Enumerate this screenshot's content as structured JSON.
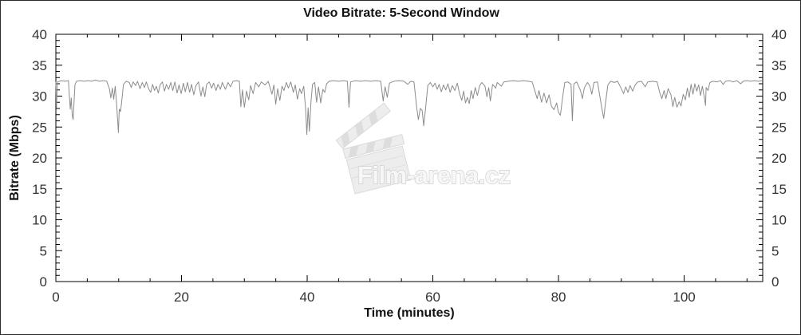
{
  "colors": {
    "background": "#ffffff",
    "axis": "#000000",
    "tick_label": "#333333",
    "line": "#8c8c8c",
    "watermark_fill": "#f7f7f7",
    "watermark_stroke": "#cccccc",
    "watermark_board": "#ececec",
    "watermark_board_stroke": "#d6d6d6"
  },
  "watermark": {
    "text": "Film-arena.cz",
    "icon": "clapperboard-icon"
  },
  "chart_data": {
    "type": "line",
    "title": "Video Bitrate: 5-Second Window",
    "xlabel": "Time (minutes)",
    "ylabel": "Bitrate (Mbps)",
    "xlim": [
      0,
      112.5
    ],
    "ylim": [
      0,
      40
    ],
    "x_major_ticks": [
      0,
      20,
      40,
      60,
      80,
      100
    ],
    "x_minor_step": 5,
    "y_major_ticks": [
      0,
      5,
      10,
      15,
      20,
      25,
      30,
      35,
      40
    ],
    "y_minor_step": 1,
    "grid": false,
    "legend": "none",
    "mirrored_axes": true,
    "line_color": "#8c8c8c",
    "series": [
      {
        "name": "video-bitrate-5s-window",
        "points": [
          [
            0,
            32.3
          ],
          [
            0.1,
            28.2
          ],
          [
            0.25,
            32.3
          ],
          [
            0.9,
            32.5
          ],
          [
            1.5,
            32.4
          ],
          [
            2.0,
            32.5
          ],
          [
            2.15,
            30.1
          ],
          [
            2.3,
            27.9
          ],
          [
            2.45,
            29.7
          ],
          [
            2.6,
            26.9
          ],
          [
            2.75,
            26.2
          ],
          [
            2.9,
            29.0
          ],
          [
            3.05,
            31.9
          ],
          [
            3.3,
            32.4
          ],
          [
            3.9,
            32.5
          ],
          [
            4.5,
            32.4
          ],
          [
            5.1,
            32.5
          ],
          [
            5.7,
            32.4
          ],
          [
            6.3,
            32.6
          ],
          [
            6.9,
            32.4
          ],
          [
            7.5,
            32.5
          ],
          [
            8.1,
            32.4
          ],
          [
            8.55,
            31.1
          ],
          [
            8.75,
            29.7
          ],
          [
            9.0,
            31.3
          ],
          [
            9.2,
            29.5
          ],
          [
            9.45,
            31.6
          ],
          [
            9.7,
            28.3
          ],
          [
            9.95,
            24.1
          ],
          [
            10.1,
            27.9
          ],
          [
            10.3,
            27.5
          ],
          [
            10.5,
            29.3
          ],
          [
            10.75,
            31.9
          ],
          [
            11.2,
            32.4
          ],
          [
            11.7,
            32.2
          ],
          [
            12.0,
            31.4
          ],
          [
            12.3,
            32.3
          ],
          [
            12.7,
            31.7
          ],
          [
            13.0,
            32.4
          ],
          [
            13.4,
            31.2
          ],
          [
            13.75,
            32.2
          ],
          [
            14.1,
            31.4
          ],
          [
            14.4,
            32.3
          ],
          [
            14.8,
            31.1
          ],
          [
            15.1,
            30.6
          ],
          [
            15.4,
            31.9
          ],
          [
            15.7,
            30.9
          ],
          [
            16.0,
            31.6
          ],
          [
            16.3,
            30.5
          ],
          [
            16.6,
            31.8
          ],
          [
            16.95,
            32.3
          ],
          [
            17.3,
            30.8
          ],
          [
            17.6,
            31.9
          ],
          [
            17.95,
            31.1
          ],
          [
            18.3,
            32.2
          ],
          [
            18.6,
            30.9
          ],
          [
            18.95,
            32.3
          ],
          [
            19.3,
            30.5
          ],
          [
            19.6,
            31.8
          ],
          [
            19.95,
            30.4
          ],
          [
            20.3,
            32.1
          ],
          [
            20.6,
            30.7
          ],
          [
            20.95,
            32.2
          ],
          [
            21.3,
            30.6
          ],
          [
            21.6,
            31.9
          ],
          [
            21.95,
            30.2
          ],
          [
            22.3,
            31.7
          ],
          [
            22.7,
            32.3
          ],
          [
            23.1,
            30.0
          ],
          [
            23.4,
            31.5
          ],
          [
            23.7,
            29.9
          ],
          [
            24.0,
            31.9
          ],
          [
            24.4,
            32.3
          ],
          [
            24.8,
            31.3
          ],
          [
            25.1,
            32.1
          ],
          [
            25.5,
            30.9
          ],
          [
            25.8,
            31.9
          ],
          [
            26.2,
            31.1
          ],
          [
            26.5,
            32.2
          ],
          [
            27.0,
            31.1
          ],
          [
            27.4,
            32.2
          ],
          [
            27.8,
            31.5
          ],
          [
            28.2,
            32.4
          ],
          [
            28.8,
            32.5
          ],
          [
            29.2,
            32.4
          ],
          [
            29.45,
            28.3
          ],
          [
            29.7,
            31.0
          ],
          [
            30.0,
            28.2
          ],
          [
            30.35,
            30.8
          ],
          [
            30.7,
            29.4
          ],
          [
            31.0,
            31.7
          ],
          [
            31.4,
            30.4
          ],
          [
            31.8,
            32.2
          ],
          [
            32.3,
            31.5
          ],
          [
            32.7,
            32.3
          ],
          [
            33.3,
            31.8
          ],
          [
            33.8,
            32.4
          ],
          [
            34.4,
            30.3
          ],
          [
            34.7,
            31.8
          ],
          [
            35.0,
            28.7
          ],
          [
            35.3,
            31.2
          ],
          [
            35.65,
            29.3
          ],
          [
            36.0,
            31.6
          ],
          [
            36.3,
            30.9
          ],
          [
            36.7,
            32.2
          ],
          [
            37.0,
            31.3
          ],
          [
            37.4,
            32.3
          ],
          [
            37.8,
            30.6
          ],
          [
            38.1,
            31.8
          ],
          [
            38.45,
            29.5
          ],
          [
            38.8,
            31.2
          ],
          [
            39.1,
            30.4
          ],
          [
            39.45,
            31.6
          ],
          [
            39.75,
            27.9
          ],
          [
            39.95,
            23.8
          ],
          [
            40.15,
            28.1
          ],
          [
            40.35,
            24.3
          ],
          [
            40.6,
            28.9
          ],
          [
            40.85,
            31.9
          ],
          [
            41.2,
            32.2
          ],
          [
            41.5,
            29.0
          ],
          [
            41.8,
            31.5
          ],
          [
            42.15,
            28.9
          ],
          [
            42.5,
            31.1
          ],
          [
            42.8,
            30.6
          ],
          [
            43.1,
            32.0
          ],
          [
            43.5,
            32.4
          ],
          [
            44.2,
            32.5
          ],
          [
            45.0,
            32.4
          ],
          [
            45.8,
            32.5
          ],
          [
            46.4,
            32.4
          ],
          [
            46.65,
            28.2
          ],
          [
            46.9,
            32.3
          ],
          [
            47.7,
            32.5
          ],
          [
            48.5,
            32.4
          ],
          [
            49.3,
            32.5
          ],
          [
            50.1,
            32.4
          ],
          [
            50.9,
            32.5
          ],
          [
            51.7,
            32.4
          ],
          [
            52.1,
            29.2
          ],
          [
            52.4,
            31.5
          ],
          [
            52.75,
            29.8
          ],
          [
            53.1,
            32.1
          ],
          [
            53.8,
            32.4
          ],
          [
            54.6,
            32.5
          ],
          [
            55.4,
            32.4
          ],
          [
            56.0,
            31.9
          ],
          [
            56.5,
            32.4
          ],
          [
            57.0,
            32.3
          ],
          [
            57.4,
            28.4
          ],
          [
            57.7,
            26.2
          ],
          [
            58.0,
            28.0
          ],
          [
            58.3,
            27.7
          ],
          [
            58.55,
            25.2
          ],
          [
            58.85,
            28.1
          ],
          [
            59.2,
            31.7
          ],
          [
            59.6,
            32.2
          ],
          [
            60.0,
            31.5
          ],
          [
            60.35,
            32.1
          ],
          [
            60.7,
            31.1
          ],
          [
            61.0,
            31.9
          ],
          [
            61.35,
            30.7
          ],
          [
            61.7,
            31.8
          ],
          [
            62.05,
            31.0
          ],
          [
            62.4,
            32.0
          ],
          [
            62.75,
            30.6
          ],
          [
            63.1,
            31.7
          ],
          [
            63.5,
            30.9
          ],
          [
            63.9,
            32.1
          ],
          [
            64.25,
            30.4
          ],
          [
            64.6,
            29.3
          ],
          [
            64.9,
            30.8
          ],
          [
            65.2,
            28.9
          ],
          [
            65.5,
            29.8
          ],
          [
            65.8,
            28.8
          ],
          [
            66.1,
            30.9
          ],
          [
            66.4,
            29.6
          ],
          [
            66.75,
            31.4
          ],
          [
            67.1,
            30.1
          ],
          [
            67.45,
            31.7
          ],
          [
            67.8,
            32.2
          ],
          [
            68.3,
            31.6
          ],
          [
            68.6,
            29.9
          ],
          [
            68.9,
            31.4
          ],
          [
            69.15,
            29.2
          ],
          [
            69.5,
            31.9
          ],
          [
            70.0,
            31.3
          ],
          [
            70.25,
            32.2
          ],
          [
            70.9,
            31.6
          ],
          [
            71.3,
            32.3
          ],
          [
            72.0,
            32.4
          ],
          [
            72.8,
            32.5
          ],
          [
            73.6,
            32.4
          ],
          [
            74.4,
            32.5
          ],
          [
            75.2,
            32.4
          ],
          [
            75.8,
            32.3
          ],
          [
            76.2,
            31.0
          ],
          [
            76.6,
            29.6
          ],
          [
            76.9,
            30.9
          ],
          [
            77.3,
            29.0
          ],
          [
            77.7,
            30.5
          ],
          [
            78.1,
            28.9
          ],
          [
            78.5,
            30.2
          ],
          [
            78.9,
            28.3
          ],
          [
            79.3,
            27.8
          ],
          [
            79.7,
            28.9
          ],
          [
            80.0,
            27.4
          ],
          [
            80.3,
            26.9
          ],
          [
            80.65,
            29.8
          ],
          [
            81.0,
            32.2
          ],
          [
            81.5,
            32.3
          ],
          [
            82.0,
            31.9
          ],
          [
            82.2,
            26.0
          ],
          [
            82.45,
            32.0
          ],
          [
            82.9,
            32.3
          ],
          [
            83.5,
            30.9
          ],
          [
            83.8,
            29.6
          ],
          [
            84.1,
            31.3
          ],
          [
            84.6,
            32.2
          ],
          [
            85.0,
            31.6
          ],
          [
            85.3,
            30.3
          ],
          [
            85.65,
            32.2
          ],
          [
            86.2,
            32.3
          ],
          [
            86.9,
            28.0
          ],
          [
            87.2,
            26.4
          ],
          [
            87.5,
            29.0
          ],
          [
            87.85,
            31.8
          ],
          [
            88.3,
            32.4
          ],
          [
            88.9,
            32.2
          ],
          [
            89.4,
            32.4
          ],
          [
            90.0,
            31.2
          ],
          [
            90.35,
            30.4
          ],
          [
            90.7,
            31.5
          ],
          [
            91.05,
            30.6
          ],
          [
            91.4,
            31.7
          ],
          [
            91.8,
            30.8
          ],
          [
            92.2,
            31.8
          ],
          [
            92.6,
            32.3
          ],
          [
            93.2,
            32.4
          ],
          [
            93.8,
            31.5
          ],
          [
            94.2,
            32.3
          ],
          [
            95.0,
            32.4
          ],
          [
            95.7,
            32.3
          ],
          [
            96.1,
            30.6
          ],
          [
            96.45,
            29.6
          ],
          [
            96.8,
            30.9
          ],
          [
            97.1,
            29.6
          ],
          [
            97.45,
            31.2
          ],
          [
            97.9,
            30.2
          ],
          [
            98.2,
            28.3
          ],
          [
            98.5,
            29.8
          ],
          [
            98.85,
            28.2
          ],
          [
            99.2,
            29.1
          ],
          [
            99.5,
            28.4
          ],
          [
            99.85,
            30.3
          ],
          [
            100.2,
            29.4
          ],
          [
            100.5,
            31.3
          ],
          [
            100.8,
            29.8
          ],
          [
            101.1,
            31.9
          ],
          [
            101.4,
            30.3
          ],
          [
            101.7,
            32.0
          ],
          [
            102.0,
            30.8
          ],
          [
            102.3,
            31.8
          ],
          [
            102.6,
            30.1
          ],
          [
            102.9,
            31.6
          ],
          [
            103.2,
            29.8
          ],
          [
            103.4,
            28.5
          ],
          [
            103.5,
            31.4
          ],
          [
            103.8,
            30.9
          ],
          [
            104.1,
            32.2
          ],
          [
            104.6,
            32.4
          ],
          [
            105.2,
            32.3
          ],
          [
            105.8,
            32.5
          ],
          [
            106.2,
            31.9
          ],
          [
            106.6,
            32.4
          ],
          [
            107.2,
            32.5
          ],
          [
            107.8,
            32.3
          ],
          [
            108.4,
            32.5
          ],
          [
            109.0,
            32.0
          ],
          [
            109.4,
            32.4
          ],
          [
            110.0,
            32.5
          ],
          [
            110.6,
            32.4
          ],
          [
            111.2,
            32.5
          ],
          [
            111.8,
            32.4
          ],
          [
            112.4,
            32.5
          ]
        ]
      }
    ]
  }
}
